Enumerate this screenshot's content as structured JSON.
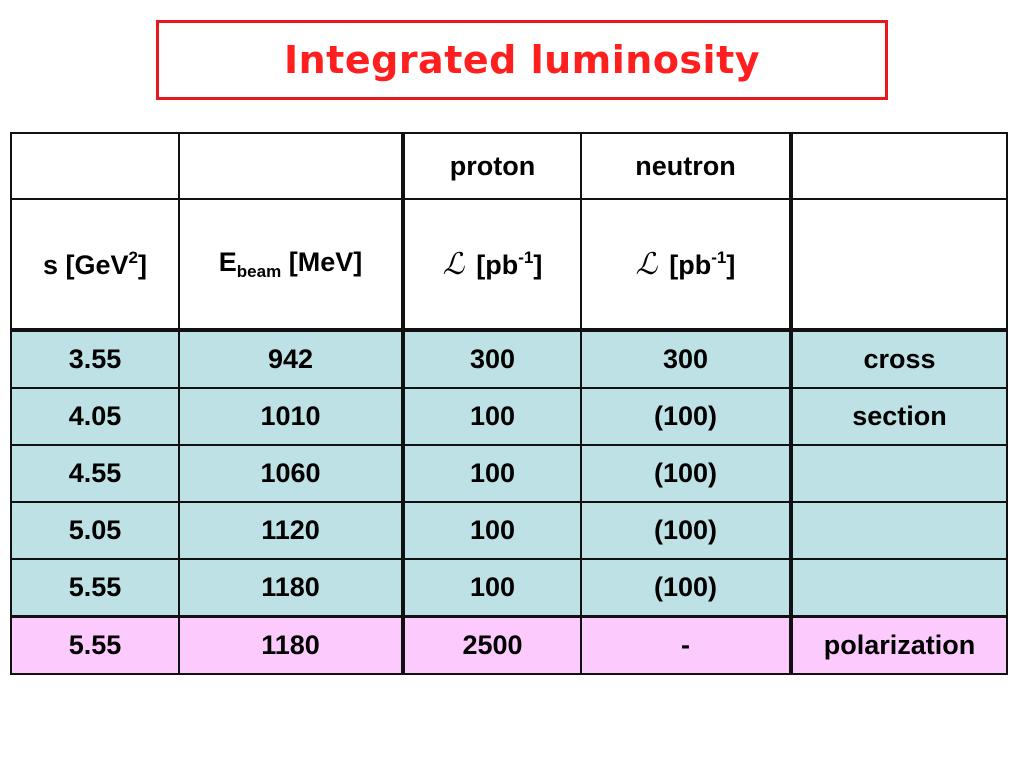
{
  "title": "Integrated luminosity",
  "header_row1": [
    "",
    "",
    "proton",
    "neutron",
    ""
  ],
  "header_row2": {
    "s_label": "s [GeV",
    "s_sup": "2",
    "s_close": "]",
    "e_label": "E",
    "e_sub": "beam",
    "e_unit": " [MeV]",
    "lum_symbol": "ℒ",
    "lum_unit": "[pb",
    "lum_sup": "-1",
    "lum_close": "]"
  },
  "rows": [
    {
      "s": "3.55",
      "e": "942",
      "proton": "300",
      "neutron": "300",
      "note": "cross"
    },
    {
      "s": "4.05",
      "e": "1010",
      "proton": "100",
      "neutron": "(100)",
      "note": "section"
    },
    {
      "s": "4.55",
      "e": "1060",
      "proton": "100",
      "neutron": "(100)",
      "note": ""
    },
    {
      "s": "5.05",
      "e": "1120",
      "proton": "100",
      "neutron": "(100)",
      "note": ""
    },
    {
      "s": "5.55",
      "e": "1180",
      "proton": "100",
      "neutron": "(100)",
      "note": ""
    },
    {
      "s": "5.55",
      "e": "1180",
      "proton": "2500",
      "neutron": "-",
      "note": "polarization"
    }
  ],
  "colors": {
    "cross_section_rows": "#bde1e4",
    "polarization_row": "#fdcafd",
    "title": "#ff1f1f"
  }
}
